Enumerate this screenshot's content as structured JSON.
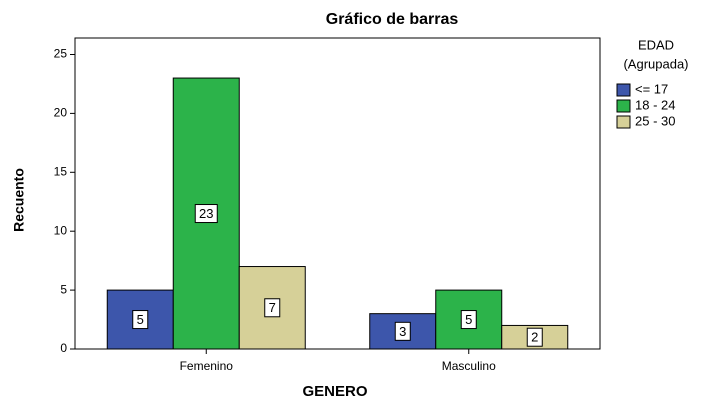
{
  "chart_data": {
    "type": "bar",
    "title": "Gráfico de barras",
    "x_label": "GENERO",
    "y_label": "Recuento",
    "legend_title": [
      "EDAD",
      "(Agrupada)"
    ],
    "categories": [
      "Femenino",
      "Masculino"
    ],
    "series": [
      {
        "name": "<= 17",
        "color": "#3d56ab",
        "values": [
          5,
          3
        ]
      },
      {
        "name": "18 - 24",
        "color": "#2cb34a",
        "values": [
          23,
          5
        ]
      },
      {
        "name": "25 - 30",
        "color": "#d6d098",
        "values": [
          7,
          2
        ]
      }
    ],
    "ylim": [
      0,
      26.4
    ],
    "yticks": [
      0,
      5,
      10,
      15,
      20,
      25
    ],
    "grid": false,
    "legend": "right"
  }
}
